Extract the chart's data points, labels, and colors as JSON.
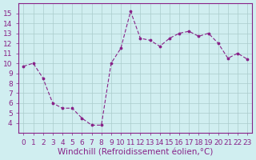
{
  "x": [
    0,
    1,
    2,
    3,
    4,
    5,
    6,
    7,
    8,
    9,
    10,
    11,
    12,
    13,
    14,
    15,
    16,
    17,
    18,
    19,
    20,
    21,
    22,
    23
  ],
  "y": [
    9.7,
    10.0,
    8.5,
    6.0,
    5.5,
    5.5,
    4.5,
    3.8,
    3.8,
    10.0,
    11.5,
    15.2,
    12.5,
    12.3,
    11.7,
    12.5,
    13.0,
    13.2,
    12.7,
    13.0,
    12.0,
    10.5,
    11.0,
    10.4
  ],
  "line_color": "#882288",
  "marker_color": "#882288",
  "bg_color": "#d0eef0",
  "grid_color": "#aacccc",
  "xlabel": "Windchill (Refroidissement éolien,°C)",
  "xlim": [
    -0.5,
    23.5
  ],
  "ylim": [
    3,
    16
  ],
  "yticks": [
    4,
    5,
    6,
    7,
    8,
    9,
    10,
    11,
    12,
    13,
    14,
    15
  ],
  "xticks": [
    0,
    1,
    2,
    3,
    4,
    5,
    6,
    7,
    8,
    9,
    10,
    11,
    12,
    13,
    14,
    15,
    16,
    17,
    18,
    19,
    20,
    21,
    22,
    23
  ],
  "tick_color": "#882288",
  "label_color": "#882288",
  "axis_line_color": "#882288",
  "xlabel_fontsize": 7.5,
  "tick_fontsize": 6.5
}
